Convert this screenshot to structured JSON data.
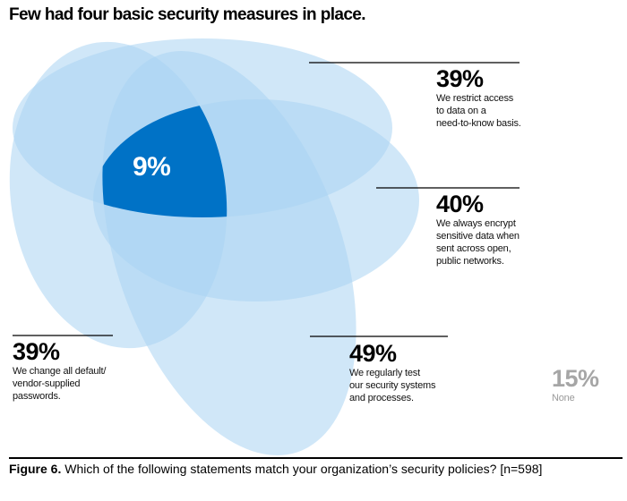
{
  "title": "Few had four basic security measures in place.",
  "center_value": "9%",
  "sets": [
    {
      "id": "restrict",
      "value": "39%",
      "label": "We restrict access\nto data on a\nneed-to-know basis."
    },
    {
      "id": "encrypt",
      "value": "40%",
      "label": "We always encrypt\nsensitive data when\nsent across open,\npublic networks."
    },
    {
      "id": "passwords",
      "value": "39%",
      "label": "We change all default/\nvendor-supplied\npasswords."
    },
    {
      "id": "test",
      "value": "49%",
      "label": "We regularly test\nour security systems\nand processes."
    }
  ],
  "none": {
    "value": "15%",
    "label": "None"
  },
  "colors": {
    "ellipse_fill": "#a9d3f2",
    "ellipse_fill_opacity": 0.55,
    "center": "#0072c6",
    "line": "#000000"
  },
  "caption": {
    "figure": "Figure 6.",
    "text": " Which of the following statements match your organization’s security policies? [n=598]"
  }
}
